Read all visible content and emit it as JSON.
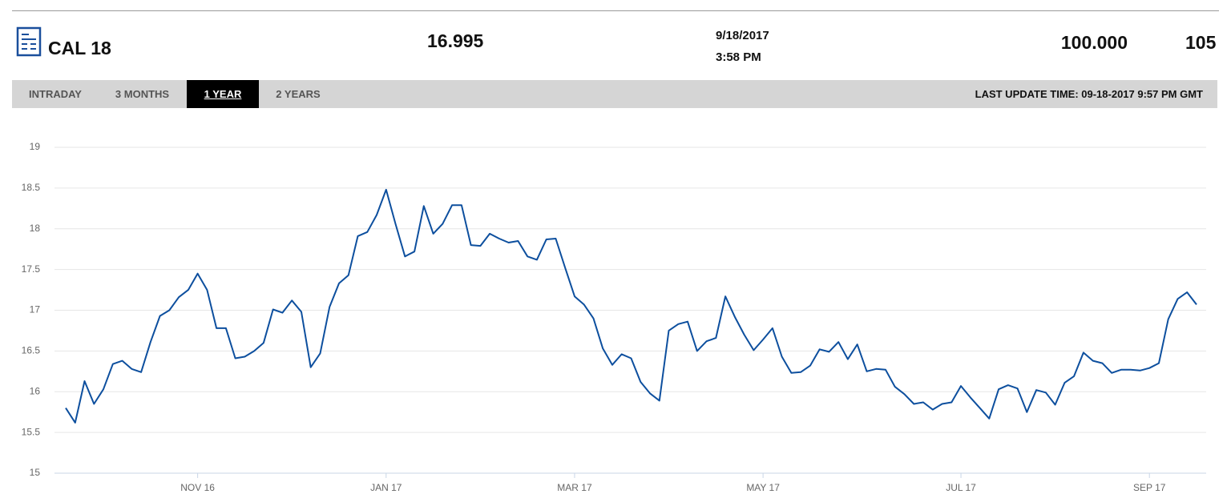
{
  "header": {
    "symbol": "CAL 18",
    "price": "16.995",
    "date": "9/18/2017",
    "time": "3:58 PM",
    "value": "100.000",
    "extra": "105"
  },
  "tabs": [
    "INTRADAY",
    "3 MONTHS",
    "1 YEAR",
    "2 YEARS"
  ],
  "last_update": "LAST UPDATE TIME: 09-18-2017 9:57 PM GMT",
  "chart_data": {
    "type": "line",
    "color": "#0d4f9e",
    "grid": true,
    "ylim": [
      15,
      19
    ],
    "yticks": [
      15,
      15.5,
      16,
      16.5,
      17,
      17.5,
      18,
      18.5,
      19
    ],
    "categories": [
      null,
      null,
      null,
      null,
      null,
      null,
      null,
      null,
      null,
      null,
      null,
      null,
      null,
      null,
      "NOV 16",
      null,
      null,
      null,
      null,
      null,
      null,
      null,
      null,
      null,
      null,
      null,
      null,
      null,
      null,
      null,
      null,
      null,
      null,
      null,
      "JAN 17",
      null,
      null,
      null,
      null,
      null,
      null,
      null,
      null,
      null,
      null,
      null,
      null,
      null,
      null,
      null,
      null,
      null,
      null,
      null,
      "MAR 17",
      null,
      null,
      null,
      null,
      null,
      null,
      null,
      null,
      null,
      null,
      null,
      null,
      null,
      null,
      null,
      null,
      null,
      null,
      null,
      "MAY 17",
      null,
      null,
      null,
      null,
      null,
      null,
      null,
      null,
      null,
      null,
      null,
      null,
      null,
      null,
      null,
      null,
      null,
      null,
      null,
      null,
      "JUL 17",
      null,
      null,
      null,
      null,
      null,
      null,
      null,
      null,
      null,
      null,
      null,
      null,
      null,
      null,
      null,
      null,
      null,
      null,
      null,
      "SEP 17",
      null,
      null,
      null,
      null,
      null
    ],
    "values": [
      15.8,
      15.62,
      16.13,
      15.85,
      16.03,
      16.34,
      16.38,
      16.28,
      16.24,
      16.61,
      16.93,
      17.0,
      17.16,
      17.25,
      17.45,
      17.25,
      16.78,
      16.78,
      16.41,
      16.43,
      16.5,
      16.6,
      17.01,
      16.97,
      17.12,
      16.98,
      16.3,
      16.47,
      17.04,
      17.33,
      17.43,
      17.91,
      17.96,
      18.17,
      18.48,
      18.06,
      17.66,
      17.72,
      18.28,
      17.94,
      18.06,
      18.29,
      18.29,
      17.8,
      17.79,
      17.94,
      17.88,
      17.83,
      17.85,
      17.66,
      17.62,
      17.87,
      17.88,
      17.52,
      17.17,
      17.07,
      16.9,
      16.53,
      16.33,
      16.46,
      16.41,
      16.12,
      15.98,
      15.89,
      16.75,
      16.83,
      16.86,
      16.5,
      16.62,
      16.66,
      17.17,
      16.92,
      16.7,
      16.51,
      16.64,
      16.78,
      16.43,
      16.23,
      16.24,
      16.32,
      16.52,
      16.49,
      16.61,
      16.4,
      16.58,
      16.25,
      16.28,
      16.27,
      16.06,
      15.97,
      15.85,
      15.87,
      15.78,
      15.85,
      15.87,
      16.07,
      15.93,
      15.8,
      15.67,
      16.03,
      16.08,
      16.04,
      15.75,
      16.02,
      15.99,
      15.84,
      16.11,
      16.19,
      16.48,
      16.38,
      16.35,
      16.23,
      16.27,
      16.27,
      16.26,
      16.29,
      16.35,
      16.89,
      17.14,
      17.22,
      17.07
    ]
  }
}
